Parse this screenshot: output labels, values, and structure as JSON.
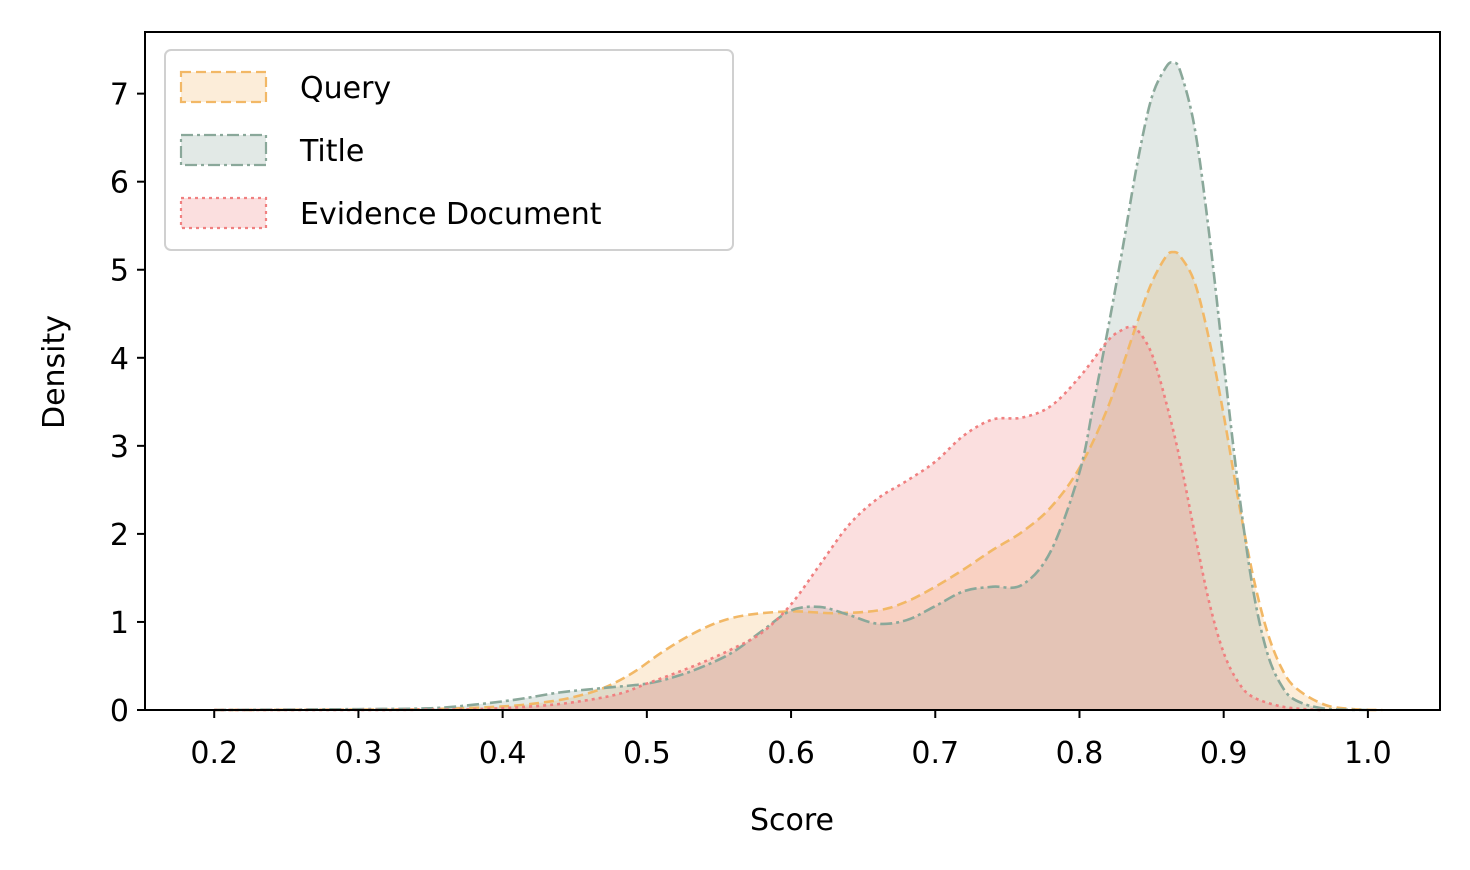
{
  "chart_data": {
    "type": "area",
    "title": "",
    "xlabel": "Score",
    "ylabel": "Density",
    "xlim": [
      0.152,
      1.05
    ],
    "ylim": [
      0,
      7.7
    ],
    "xticks": [
      "0.2",
      "0.3",
      "0.4",
      "0.5",
      "0.6",
      "0.7",
      "0.8",
      "0.9",
      "1.0"
    ],
    "yticks": [
      "0",
      "1",
      "2",
      "3",
      "4",
      "5",
      "6",
      "7"
    ],
    "grid": false,
    "legend_position": "top-left",
    "series": [
      {
        "name": "Query",
        "color": "#F2B866",
        "linestyle": "dashed",
        "points": [
          [
            0.2,
            0
          ],
          [
            0.3,
            0.005
          ],
          [
            0.35,
            0.01
          ],
          [
            0.4,
            0.04
          ],
          [
            0.43,
            0.09
          ],
          [
            0.45,
            0.15
          ],
          [
            0.47,
            0.25
          ],
          [
            0.49,
            0.42
          ],
          [
            0.51,
            0.65
          ],
          [
            0.53,
            0.85
          ],
          [
            0.55,
            1.0
          ],
          [
            0.57,
            1.08
          ],
          [
            0.6,
            1.12
          ],
          [
            0.63,
            1.1
          ],
          [
            0.66,
            1.13
          ],
          [
            0.68,
            1.23
          ],
          [
            0.7,
            1.4
          ],
          [
            0.72,
            1.6
          ],
          [
            0.74,
            1.82
          ],
          [
            0.76,
            2.02
          ],
          [
            0.78,
            2.3
          ],
          [
            0.8,
            2.75
          ],
          [
            0.82,
            3.45
          ],
          [
            0.84,
            4.4
          ],
          [
            0.85,
            4.85
          ],
          [
            0.86,
            5.15
          ],
          [
            0.865,
            5.2
          ],
          [
            0.87,
            5.15
          ],
          [
            0.88,
            4.85
          ],
          [
            0.89,
            4.2
          ],
          [
            0.9,
            3.35
          ],
          [
            0.91,
            2.4
          ],
          [
            0.92,
            1.55
          ],
          [
            0.93,
            0.9
          ],
          [
            0.94,
            0.48
          ],
          [
            0.95,
            0.25
          ],
          [
            0.97,
            0.06
          ],
          [
            0.99,
            0.01
          ],
          [
            1.01,
            0
          ]
        ]
      },
      {
        "name": "Title",
        "color": "#8AA89A",
        "linestyle": "dashdot",
        "points": [
          [
            0.2,
            0
          ],
          [
            0.3,
            0.01
          ],
          [
            0.35,
            0.02
          ],
          [
            0.38,
            0.06
          ],
          [
            0.41,
            0.12
          ],
          [
            0.44,
            0.2
          ],
          [
            0.47,
            0.25
          ],
          [
            0.5,
            0.3
          ],
          [
            0.52,
            0.38
          ],
          [
            0.54,
            0.5
          ],
          [
            0.56,
            0.66
          ],
          [
            0.58,
            0.9
          ],
          [
            0.6,
            1.13
          ],
          [
            0.62,
            1.17
          ],
          [
            0.64,
            1.08
          ],
          [
            0.66,
            0.98
          ],
          [
            0.68,
            1.02
          ],
          [
            0.7,
            1.18
          ],
          [
            0.72,
            1.35
          ],
          [
            0.74,
            1.4
          ],
          [
            0.76,
            1.42
          ],
          [
            0.78,
            1.8
          ],
          [
            0.8,
            2.7
          ],
          [
            0.81,
            3.5
          ],
          [
            0.82,
            4.35
          ],
          [
            0.83,
            5.25
          ],
          [
            0.84,
            6.2
          ],
          [
            0.85,
            6.95
          ],
          [
            0.86,
            7.3
          ],
          [
            0.865,
            7.35
          ],
          [
            0.87,
            7.25
          ],
          [
            0.88,
            6.6
          ],
          [
            0.89,
            5.4
          ],
          [
            0.9,
            3.95
          ],
          [
            0.91,
            2.55
          ],
          [
            0.92,
            1.4
          ],
          [
            0.93,
            0.66
          ],
          [
            0.94,
            0.28
          ],
          [
            0.95,
            0.11
          ],
          [
            0.97,
            0.015
          ],
          [
            1.0,
            0
          ]
        ]
      },
      {
        "name": "Evidence Document",
        "color": "#F08080",
        "linestyle": "dotted",
        "points": [
          [
            0.2,
            0
          ],
          [
            0.3,
            0
          ],
          [
            0.38,
            0.01
          ],
          [
            0.42,
            0.04
          ],
          [
            0.45,
            0.09
          ],
          [
            0.48,
            0.18
          ],
          [
            0.5,
            0.3
          ],
          [
            0.52,
            0.42
          ],
          [
            0.54,
            0.55
          ],
          [
            0.56,
            0.7
          ],
          [
            0.58,
            0.88
          ],
          [
            0.6,
            1.2
          ],
          [
            0.62,
            1.65
          ],
          [
            0.64,
            2.1
          ],
          [
            0.66,
            2.4
          ],
          [
            0.68,
            2.6
          ],
          [
            0.7,
            2.82
          ],
          [
            0.72,
            3.12
          ],
          [
            0.74,
            3.3
          ],
          [
            0.76,
            3.32
          ],
          [
            0.78,
            3.45
          ],
          [
            0.8,
            3.78
          ],
          [
            0.82,
            4.2
          ],
          [
            0.83,
            4.32
          ],
          [
            0.835,
            4.35
          ],
          [
            0.84,
            4.32
          ],
          [
            0.85,
            4.05
          ],
          [
            0.86,
            3.5
          ],
          [
            0.87,
            2.82
          ],
          [
            0.88,
            2.0
          ],
          [
            0.89,
            1.22
          ],
          [
            0.9,
            0.65
          ],
          [
            0.91,
            0.32
          ],
          [
            0.92,
            0.15
          ],
          [
            0.94,
            0.04
          ],
          [
            0.96,
            0.005
          ],
          [
            0.97,
            0
          ]
        ]
      }
    ]
  }
}
